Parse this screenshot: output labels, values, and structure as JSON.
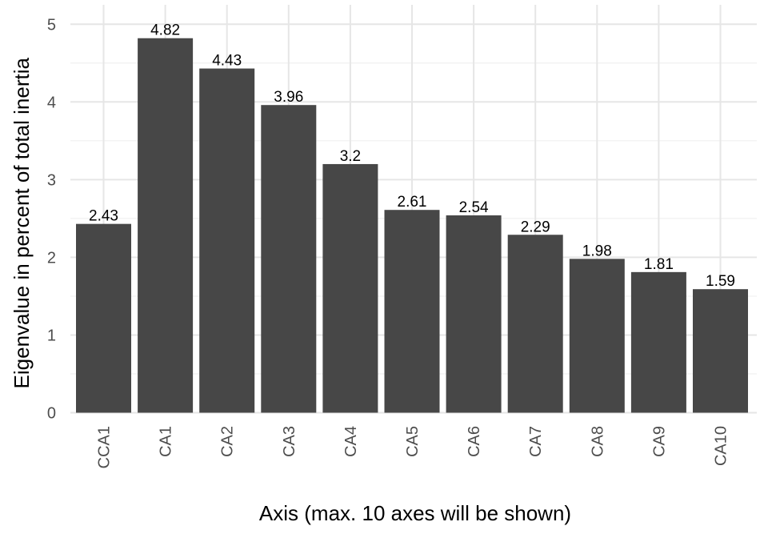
{
  "chart_data": {
    "type": "bar",
    "categories": [
      "CCA1",
      "CA1",
      "CA2",
      "CA3",
      "CA4",
      "CA5",
      "CA6",
      "CA7",
      "CA8",
      "CA9",
      "CA10"
    ],
    "values": [
      2.43,
      4.82,
      4.43,
      3.96,
      3.2,
      2.61,
      2.54,
      2.29,
      1.98,
      1.81,
      1.59
    ],
    "value_labels": [
      "2.43",
      "4.82",
      "4.43",
      "3.96",
      "3.2",
      "2.61",
      "2.54",
      "2.29",
      "1.98",
      "1.81",
      "1.59"
    ],
    "xlabel": "Axis (max. 10 axes will be shown)",
    "ylabel": "Eigenvalue in percent of total inertia",
    "ylim": [
      0,
      5.25
    ],
    "yticks": [
      0,
      1,
      2,
      3,
      4,
      5
    ],
    "ytick_labels": [
      "0",
      "1",
      "2",
      "3",
      "4",
      "5"
    ],
    "grid": true,
    "bar_color": "#474747",
    "grid_color": "#e6e6e6"
  }
}
